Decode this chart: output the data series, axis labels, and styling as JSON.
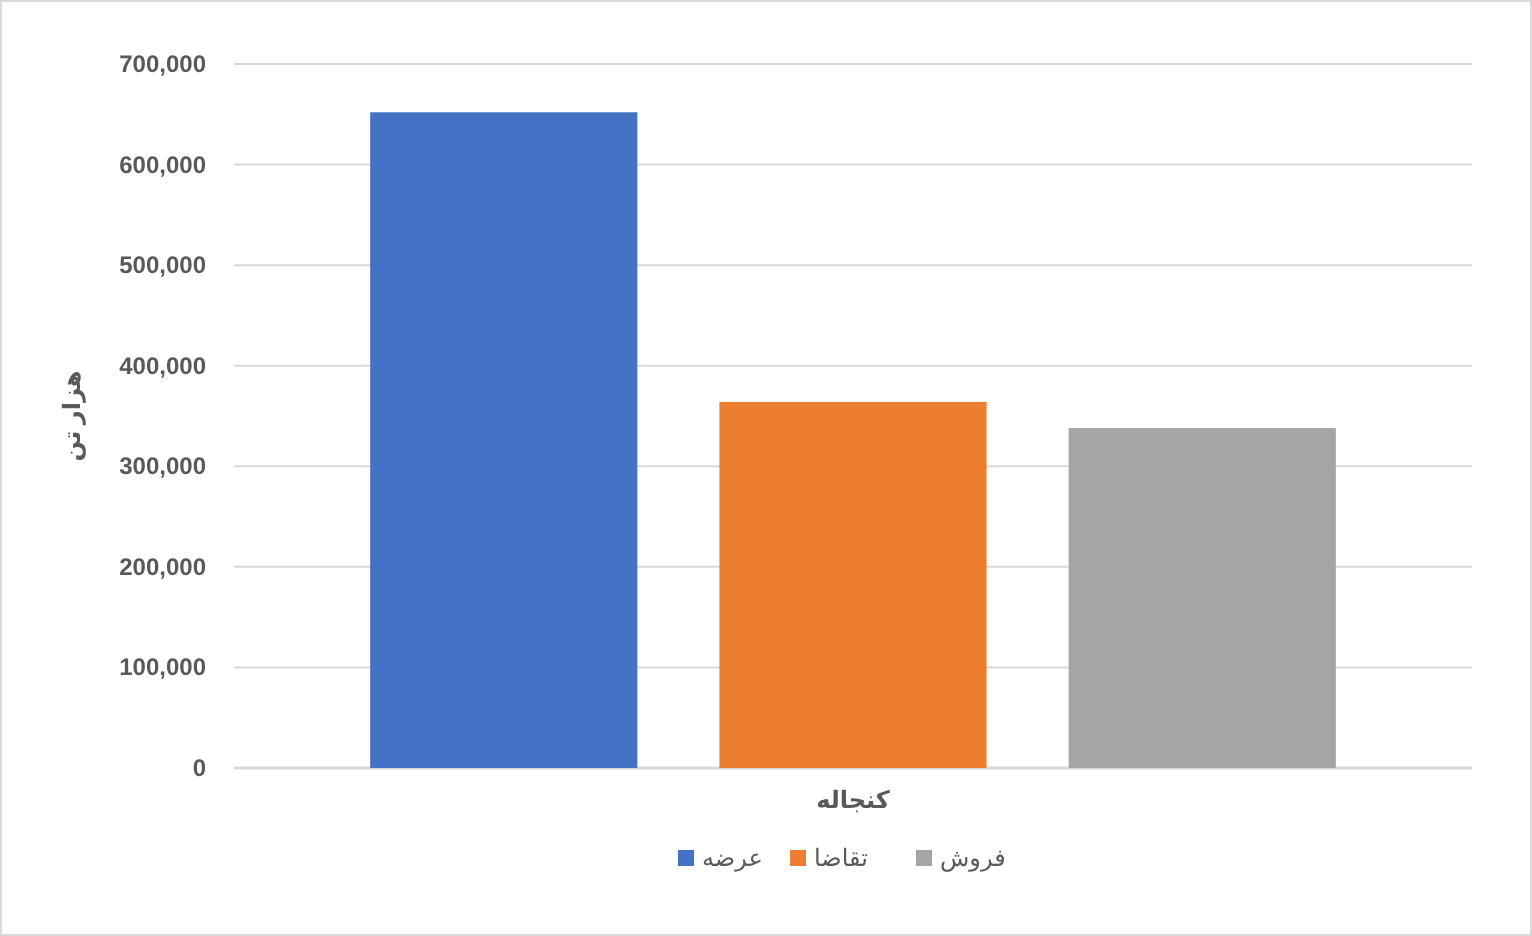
{
  "chart_data": {
    "type": "bar",
    "ylabel": "هزار تن",
    "categories": [
      "کنجاله"
    ],
    "series": [
      {
        "name": "عرضه",
        "color": "#4472c4",
        "values": [
          652000
        ]
      },
      {
        "name": "تقاضا",
        "color": "#ed7d31",
        "values": [
          364000
        ]
      },
      {
        "name": "فروش",
        "color": "#a5a5a5",
        "values": [
          338000
        ]
      }
    ],
    "ylim": [
      0,
      700000
    ],
    "yticks": [
      0,
      {
        "value": 100000,
        "label": "100,000"
      },
      {
        "value": 200000,
        "label": "200,000"
      },
      {
        "value": 300000,
        "label": "300,000"
      },
      {
        "value": 400000,
        "label": "400,000"
      },
      {
        "value": 500000,
        "label": "500,000"
      },
      {
        "value": 600000,
        "label": "600,000"
      },
      {
        "value": 700000,
        "label": "700,000"
      }
    ],
    "grid": "y",
    "legend": "bottom"
  }
}
